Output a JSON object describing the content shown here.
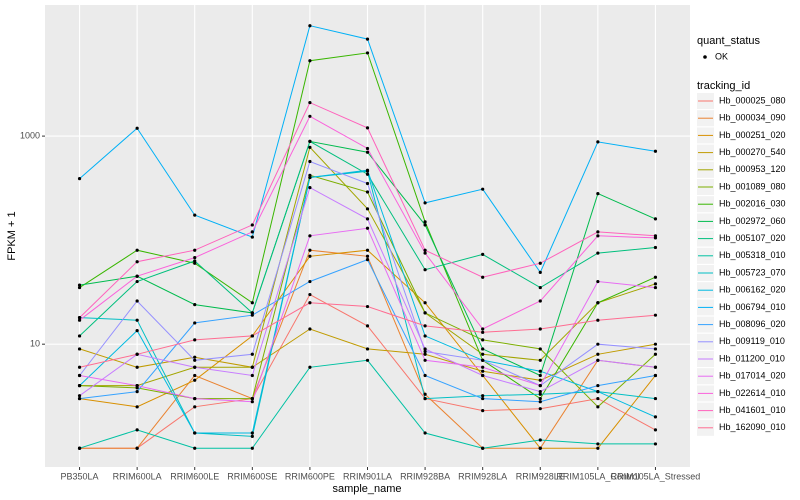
{
  "chart_data": {
    "type": "line",
    "x_label": "sample_name",
    "y_label": "FPKM + 1",
    "categories": [
      "PB350LA",
      "RRIM600LA",
      "RRIM600LE",
      "RRIM600SE",
      "RRIM600PE",
      "RRIM901LA",
      "RRIM928BA",
      "RRIM928LA",
      "RRIM928LE",
      "RRIM105LA_Control",
      "RRIM105LA_Stressed"
    ],
    "y_log": true,
    "grid": true,
    "ylim": [
      0.66,
      18200
    ],
    "yticks": [
      10,
      1000
    ],
    "legend": {
      "position": "right",
      "status_title": "quant_status",
      "status_labels": [
        "OK"
      ],
      "title": "tracking_id"
    },
    "series": [
      {
        "name": "Hb_000025_080",
        "color": "#F8766D",
        "values": [
          1,
          1,
          2.5,
          3,
          30,
          15,
          3,
          2.3,
          2.4,
          3,
          1.5
        ]
      },
      {
        "name": "Hb_000034_090",
        "color": "#EA8331",
        "values": [
          1,
          1,
          5,
          3,
          80,
          70,
          3.3,
          1,
          1,
          7,
          6
        ]
      },
      {
        "name": "Hb_000251_020",
        "color": "#D89000",
        "values": [
          3,
          2.5,
          4.5,
          12,
          70,
          80,
          25,
          5,
          1,
          1,
          5
        ]
      },
      {
        "name": "Hb_000270_540",
        "color": "#C09B00",
        "values": [
          9,
          6,
          7.5,
          6,
          14,
          9,
          8,
          5.5,
          4.5,
          8,
          10
        ]
      },
      {
        "name": "Hb_000953_120",
        "color": "#A3A500",
        "values": [
          4,
          4,
          6,
          6,
          780,
          200,
          20,
          8,
          7,
          25,
          38
        ]
      },
      {
        "name": "Hb_001089_080",
        "color": "#7CAE00",
        "values": [
          4,
          3.8,
          3,
          3,
          420,
          290,
          20,
          11,
          9,
          2.5,
          8
        ]
      },
      {
        "name": "Hb_002016_030",
        "color": "#39B600",
        "values": [
          35,
          80,
          60,
          25,
          5300,
          6300,
          150,
          7,
          3,
          25,
          44
        ]
      },
      {
        "name": "Hb_002972_060",
        "color": "#00BB4E",
        "values": [
          37,
          45,
          24,
          20,
          890,
          700,
          140,
          9,
          5,
          280,
          160
        ]
      },
      {
        "name": "Hb_005107_020",
        "color": "#00BF7D",
        "values": [
          12,
          40,
          63,
          20,
          890,
          430,
          52,
          73,
          35,
          75,
          85
        ]
      },
      {
        "name": "Hb_005318_010",
        "color": "#00C1A3",
        "values": [
          1,
          1.5,
          1,
          1,
          6,
          7,
          1.4,
          1,
          1.2,
          1.1,
          1.1
        ]
      },
      {
        "name": "Hb_005723_070",
        "color": "#00BFC4",
        "values": [
          18,
          17,
          1.4,
          1.3,
          400,
          460,
          3,
          3.2,
          3.3,
          3.5,
          3
        ]
      },
      {
        "name": "Hb_006162_020",
        "color": "#00BAE0",
        "values": [
          4,
          13.5,
          1.4,
          1.4,
          400,
          470,
          12,
          7,
          5.5,
          3.5,
          2
        ]
      },
      {
        "name": "Hb_006794_010",
        "color": "#00B0F6",
        "values": [
          390,
          1190,
          174,
          107,
          11500,
          8550,
          228,
          309,
          49,
          880,
          715
        ]
      },
      {
        "name": "Hb_008096_020",
        "color": "#35A2FF",
        "values": [
          3,
          3.5,
          16,
          19,
          40,
          65,
          5,
          3,
          2.8,
          4,
          5
        ]
      },
      {
        "name": "Hb_009119_010",
        "color": "#9590FF",
        "values": [
          5,
          26,
          7,
          8,
          570,
          350,
          8.5,
          7,
          4,
          10,
          9
        ]
      },
      {
        "name": "Hb_011200_010",
        "color": "#C77CFF",
        "values": [
          3.2,
          8,
          6,
          5,
          320,
          160,
          9,
          5,
          3.5,
          7,
          6
        ]
      },
      {
        "name": "Hb_017014_020",
        "color": "#E76BF3",
        "values": [
          5,
          4,
          3,
          2.8,
          110,
          130,
          7,
          6,
          4,
          40,
          35
        ]
      },
      {
        "name": "Hb_022614_010",
        "color": "#FA62DB",
        "values": [
          17,
          45,
          68,
          120,
          1550,
          760,
          75,
          14,
          26,
          110,
          105
        ]
      },
      {
        "name": "Hb_041601_010",
        "color": "#FF62BC",
        "values": [
          18,
          62,
          80,
          140,
          2100,
          1200,
          80,
          44,
          60,
          120,
          110
        ]
      },
      {
        "name": "Hb_162090_010",
        "color": "#FF6C91",
        "values": [
          6,
          8,
          11,
          12,
          25,
          23,
          15,
          13,
          14,
          17,
          19
        ]
      }
    ]
  }
}
